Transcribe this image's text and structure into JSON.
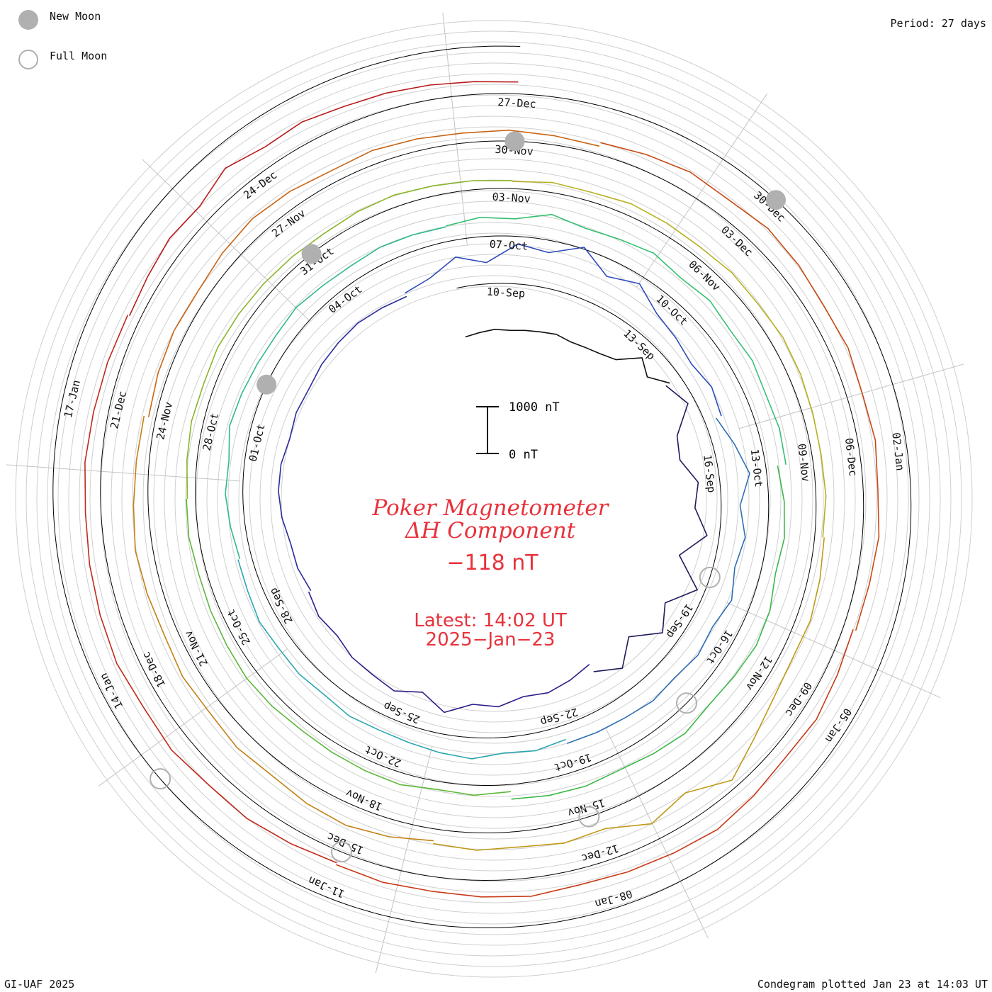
{
  "legend": {
    "new_moon_label": "New Moon",
    "full_moon_label": "Full Moon",
    "new_moon_color": "#b0b0b0",
    "full_moon_color": "#b0b0b0"
  },
  "header": {
    "period": "Period: 27 days"
  },
  "footer": {
    "left": "GI-UAF 2025",
    "right": "Condegram plotted Jan 23 at 14:03 UT"
  },
  "center": {
    "title_line1": "Poker Magnetometer",
    "title_line2": "ΔH Component",
    "current_value": "−118 nT",
    "latest_line1": "Latest: 14:02 UT",
    "latest_line2": "2025−Jan−23",
    "scale_top_label": "1000 nT",
    "scale_bottom_label": "0 nT",
    "text_color": "#e8323c"
  },
  "chart_data": {
    "type": "line",
    "subtype": "spiral condegram",
    "period_days": 27,
    "scale_nT": [
      0,
      1000
    ],
    "series": [
      {
        "color": "#111111",
        "start": "Sep-09",
        "end": "Sep-14",
        "values": [
          0,
          40,
          80,
          60,
          90,
          120,
          160,
          120,
          150,
          200,
          300,
          700,
          500,
          800
        ]
      },
      {
        "color": "#1e1b5c",
        "start": "Sep-14",
        "end": "Sep-21",
        "values": [
          700,
          900,
          400,
          300,
          600,
          500,
          800,
          300,
          900,
          400,
          700,
          200,
          600,
          300
        ]
      },
      {
        "color": "#2a1f8a",
        "start": "Sep-21",
        "end": "Sep-28",
        "values": [
          120,
          220,
          300,
          250,
          400,
          350,
          600,
          300,
          500,
          420,
          380,
          260,
          300,
          200
        ]
      },
      {
        "color": "#2b2a9c",
        "start": "Sep-28",
        "end": "Oct-05",
        "values": [
          150,
          200,
          180,
          260,
          300,
          280,
          200,
          240,
          210,
          260,
          280,
          300,
          260,
          220
        ]
      },
      {
        "color": "#2f4bb8",
        "start": "Oct-05",
        "end": "Oct-12",
        "values": [
          300,
          400,
          700,
          500,
          900,
          800,
          1100,
          700,
          900,
          600,
          500,
          400,
          500,
          420
        ]
      },
      {
        "color": "#2e6fb5",
        "start": "Oct-12",
        "end": "Oct-19",
        "values": [
          300,
          500,
          700,
          450,
          600,
          500,
          650,
          520,
          580,
          500,
          540,
          480,
          460,
          440
        ]
      },
      {
        "color": "#2aa7b0",
        "start": "Oct-19",
        "end": "Oct-26",
        "values": [
          350,
          420,
          380,
          500,
          450,
          400,
          380,
          420,
          360,
          400,
          380,
          420,
          360,
          340
        ]
      },
      {
        "color": "#30b890",
        "start": "Oct-26",
        "end": "Nov-02",
        "values": [
          300,
          360,
          420,
          380,
          500,
          460,
          420,
          400,
          440,
          380,
          360,
          400,
          380,
          360
        ]
      },
      {
        "color": "#35c070",
        "start": "Nov-02",
        "end": "Nov-09",
        "values": [
          380,
          460,
          420,
          600,
          480,
          520,
          600,
          500,
          560,
          480,
          520,
          460,
          500,
          480
        ]
      },
      {
        "color": "#3cb84a",
        "start": "Nov-09",
        "end": "Nov-16",
        "values": [
          300,
          380,
          420,
          360,
          480,
          520,
          460,
          420,
          500,
          440,
          380,
          420,
          400,
          360
        ]
      },
      {
        "color": "#5cb83a",
        "start": "Nov-16",
        "end": "Nov-23",
        "values": [
          200,
          260,
          220,
          300,
          280,
          260,
          240,
          280,
          300,
          260,
          240,
          220,
          260,
          240
        ]
      },
      {
        "color": "#8ab52a",
        "start": "Nov-23",
        "end": "Nov-30",
        "values": [
          220,
          260,
          300,
          280,
          320,
          300,
          280,
          260,
          240,
          280,
          300,
          260,
          240,
          220
        ]
      },
      {
        "color": "#b8b020",
        "start": "Nov-30",
        "end": "Dec-07",
        "values": [
          200,
          260,
          240,
          300,
          280,
          260,
          300,
          280,
          320,
          300,
          260,
          240,
          260,
          220
        ]
      },
      {
        "color": "#c09a18",
        "start": "Dec-07",
        "end": "Dec-14",
        "values": [
          250,
          300,
          350,
          320,
          400,
          600,
          900,
          500,
          700,
          400,
          450,
          380,
          420,
          360
        ]
      },
      {
        "color": "#c48014",
        "start": "Dec-14",
        "end": "Dec-21",
        "values": [
          300,
          420,
          500,
          460,
          380,
          420,
          360,
          400,
          340,
          380,
          420,
          360,
          320,
          300
        ]
      },
      {
        "color": "#c86414",
        "start": "Dec-21",
        "end": "Dec-28",
        "values": [
          200,
          260,
          300,
          280,
          360,
          420,
          380,
          300,
          340,
          300,
          260,
          280,
          240,
          220
        ]
      },
      {
        "color": "#c84a14",
        "start": "Dec-28",
        "end": "Jan-04",
        "values": [
          300,
          380,
          460,
          420,
          500,
          460,
          400,
          440,
          380,
          420,
          360,
          400,
          340,
          320
        ]
      },
      {
        "color": "#c83a18",
        "start": "Jan-04",
        "end": "Jan-11",
        "values": [
          260,
          320,
          400,
          360,
          440,
          520,
          460,
          420,
          380,
          440,
          400,
          360,
          380,
          340
        ]
      },
      {
        "color": "#c02a1a",
        "start": "Jan-11",
        "end": "Jan-18",
        "values": [
          300,
          360,
          420,
          400,
          480,
          440,
          500,
          460,
          420,
          380,
          400,
          360,
          340,
          320
        ]
      },
      {
        "color": "#b81c1c",
        "start": "Jan-18",
        "end": "Jan-23",
        "values": [
          280,
          340,
          420,
          380,
          600,
          450,
          500,
          420,
          400,
          360,
          320,
          300
        ]
      }
    ],
    "date_labels": [
      "10-Sep",
      "13-Sep",
      "16-Sep",
      "19-Sep",
      "22-Sep",
      "25-Sep",
      "28-Sep",
      "01-Oct",
      "04-Oct",
      "07-Oct",
      "10-Oct",
      "13-Oct",
      "16-Oct",
      "19-Oct",
      "22-Oct",
      "25-Oct",
      "28-Oct",
      "31-Oct",
      "03-Nov",
      "06-Nov",
      "09-Nov",
      "12-Nov",
      "15-Nov",
      "18-Nov",
      "21-Nov",
      "24-Nov",
      "27-Nov",
      "30-Nov",
      "03-Dec",
      "06-Dec",
      "09-Dec",
      "12-Dec",
      "15-Dec",
      "18-Dec",
      "21-Dec",
      "24-Dec",
      "27-Dec",
      "30-Dec",
      "02-Jan",
      "05-Jan",
      "08-Jan",
      "11-Jan",
      "14-Jan",
      "17-Jan"
    ],
    "new_moon_dates": [
      "Oct-02",
      "Oct-31",
      "Nov-30",
      "Dec-30"
    ],
    "full_moon_dates": [
      "Sep-18",
      "Oct-17",
      "Nov-15",
      "Dec-15",
      "Jan-13"
    ]
  }
}
